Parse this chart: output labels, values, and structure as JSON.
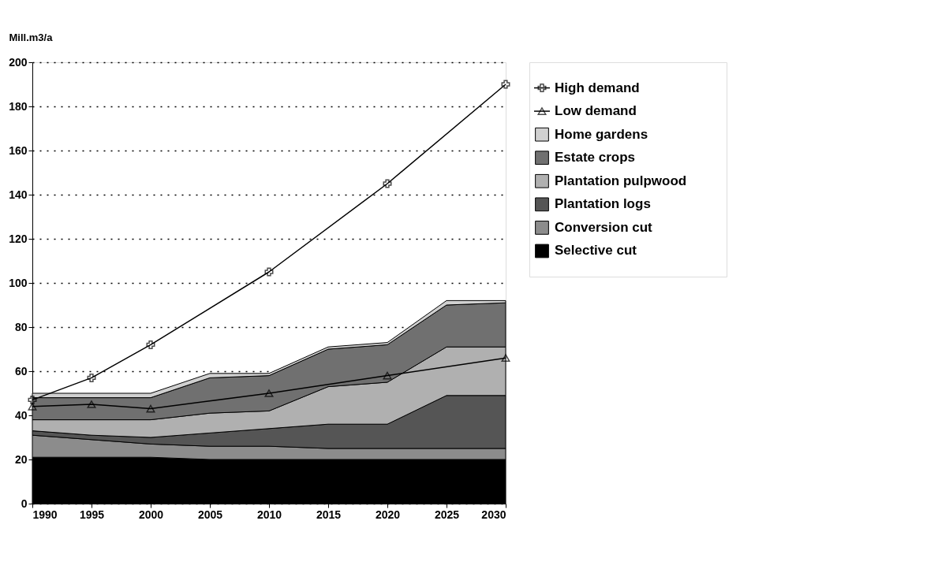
{
  "chart_data": {
    "type": "area",
    "stacked": true,
    "ylabel": "Mill.m3/a",
    "x": [
      1990,
      1995,
      2000,
      2005,
      2010,
      2015,
      2020,
      2025,
      2030
    ],
    "xlim": [
      1990,
      2030
    ],
    "xticks": [
      1990,
      1995,
      2000,
      2005,
      2010,
      2015,
      2020,
      2025,
      2030
    ],
    "ylim": [
      0,
      200
    ],
    "yticks": [
      0,
      20,
      40,
      60,
      80,
      100,
      120,
      140,
      160,
      180,
      200
    ],
    "grid": "y",
    "legend": "right",
    "series": [
      {
        "name": "High demand",
        "type": "line",
        "color": "#000000",
        "marker": "cross",
        "x": [
          1990,
          1995,
          2000,
          2010,
          2020,
          2030
        ],
        "values": [
          47,
          57,
          72,
          105,
          145,
          190
        ]
      },
      {
        "name": "Low demand",
        "type": "line",
        "color": "#000000",
        "marker": "triangle",
        "x": [
          1990,
          1995,
          2000,
          2010,
          2020,
          2030
        ],
        "values": [
          44,
          45,
          43,
          50,
          58,
          66
        ]
      },
      {
        "name": "Selective cut",
        "color": "#000000",
        "values": [
          21,
          21,
          21,
          20,
          20,
          20,
          20,
          20,
          20
        ]
      },
      {
        "name": "Conversion cut",
        "color": "#8c8c8c",
        "values": [
          10,
          8,
          6,
          6,
          6,
          5,
          5,
          5,
          5
        ]
      },
      {
        "name": "Plantation logs",
        "color": "#555555",
        "values": [
          2,
          2,
          3,
          6,
          8,
          11,
          11,
          24,
          24
        ]
      },
      {
        "name": "Plantation pulpwood",
        "color": "#b0b0b0",
        "values": [
          5,
          7,
          8,
          9,
          8,
          17,
          19,
          22,
          22
        ]
      },
      {
        "name": "Estate crops",
        "color": "#707070",
        "values": [
          10,
          10,
          10,
          16,
          16,
          17,
          17,
          19,
          20
        ]
      },
      {
        "name": "Home gardens",
        "color": "#d0d0d0",
        "values": [
          2,
          2,
          2,
          2,
          1,
          1,
          1,
          2,
          1
        ]
      }
    ]
  }
}
